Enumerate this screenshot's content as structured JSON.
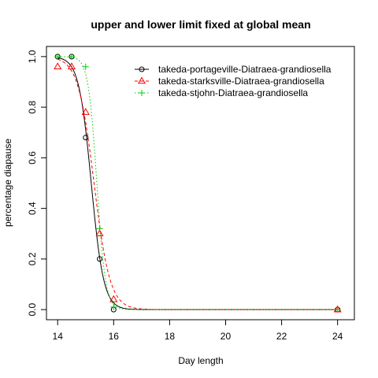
{
  "chart_data": {
    "type": "line",
    "title": "upper and lower limit fixed at global mean",
    "xlabel": "Day length",
    "ylabel": "percentage diapause",
    "xlim": [
      13.6,
      24.6
    ],
    "ylim": [
      -0.04,
      1.04
    ],
    "xticks": [
      14,
      16,
      18,
      20,
      22,
      24
    ],
    "yticks": [
      0.0,
      0.2,
      0.4,
      0.6,
      0.8,
      1.0
    ],
    "xtick_labels": [
      "14",
      "16",
      "18",
      "20",
      "22",
      "24"
    ],
    "ytick_labels": [
      "0.0",
      "0.2",
      "0.4",
      "0.6",
      "0.8",
      "1.0"
    ],
    "legend_position": "top-right",
    "series": [
      {
        "name": "takeda-portageville-Diatraea-grandiosella",
        "color": "#000000",
        "marker": "circle",
        "linestyle": "solid",
        "points": [
          [
            14,
            1.0
          ],
          [
            14.5,
            1.0
          ],
          [
            15,
            0.68
          ],
          [
            15.5,
            0.2
          ],
          [
            16,
            0.0
          ],
          [
            24,
            0.0
          ]
        ],
        "curve": {
          "midpoint": 15.2,
          "slope": 4.5
        }
      },
      {
        "name": "takeda-starksville-Diatraea-grandiosella",
        "color": "#ff0000",
        "marker": "triangle",
        "linestyle": "dashed",
        "points": [
          [
            14,
            0.96
          ],
          [
            14.5,
            0.96
          ],
          [
            15,
            0.78
          ],
          [
            15.5,
            0.3
          ],
          [
            16,
            0.04
          ],
          [
            24,
            0.0
          ]
        ],
        "curve": {
          "midpoint": 15.3,
          "slope": 3.5
        }
      },
      {
        "name": "takeda-stjohn-Diatraea-grandiosella",
        "color": "#00cc00",
        "marker": "plus",
        "linestyle": "dotted",
        "points": [
          [
            14,
            1.0
          ],
          [
            14.5,
            1.0
          ],
          [
            15,
            0.96
          ],
          [
            15.5,
            0.32
          ],
          [
            16,
            0.01
          ],
          [
            24,
            0.0
          ]
        ],
        "curve": {
          "midpoint": 15.4,
          "slope": 6.5
        }
      }
    ]
  }
}
